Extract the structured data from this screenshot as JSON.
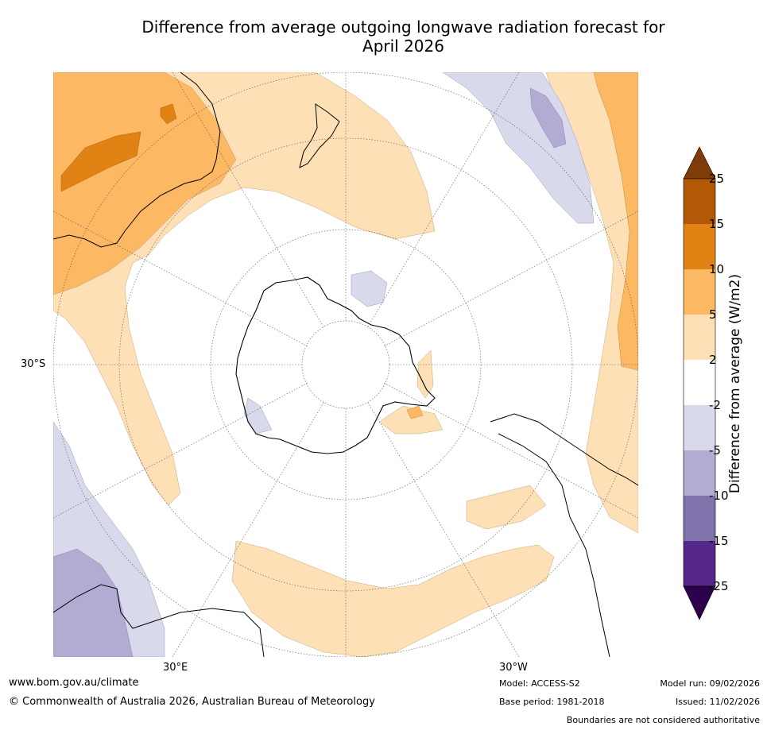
{
  "title_line1": "Difference from average outgoing longwave radiation forecast for",
  "title_line2": "April 2026",
  "map": {
    "labels": {
      "lat_30s": "30°S",
      "lon_30e": "30°E",
      "lon_30w": "30°W"
    }
  },
  "legend": {
    "title": "Difference from average (W/m2)",
    "ticks": [
      "25",
      "15",
      "10",
      "5",
      "2",
      "-2",
      "-5",
      "-10",
      "-15",
      "-25"
    ],
    "colors": {
      "over": "#7f3b08",
      "c15_25": "#b35806",
      "c10_15": "#e08214",
      "c5_10": "#fdb863",
      "c2_5": "#fee0b6",
      "neutral": "#ffffff",
      "m5_m2": "#d8daeb",
      "m10_m5": "#b2abd2",
      "m15_m10": "#8073ac",
      "m25_m15": "#542788",
      "under": "#2d004b"
    }
  },
  "footer": {
    "url": "www.bom.gov.au/climate",
    "copyright": "© Commonwealth of Australia 2026, Australian Bureau of Meteorology",
    "model": "Model: ACCESS-S2",
    "base_period": "Base period: 1981-2018",
    "model_run": "Model run: 09/02/2026",
    "issued": "Issued: 11/02/2026",
    "disclaimer": "Boundaries are not considered authoritative"
  }
}
